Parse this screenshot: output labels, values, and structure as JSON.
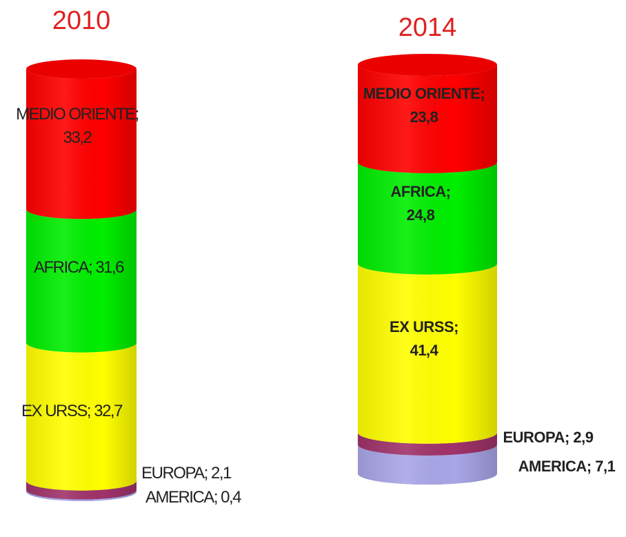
{
  "chart_data": [
    {
      "type": "stacked-cylinder",
      "title": "2010",
      "unit": "",
      "segments_bottom_to_top": [
        {
          "name": "AMERICA",
          "value": 0.4,
          "label": "AMERICA; 0,4",
          "color": "#a9a6e8"
        },
        {
          "name": "EUROPA",
          "value": 2.1,
          "label": "EUROPA; 2,1",
          "color": "#a0336a"
        },
        {
          "name": "EX URSS",
          "value": 32.7,
          "label": "EX URSS; 32,7",
          "color": "#ffff00"
        },
        {
          "name": "AFRICA",
          "value": 31.6,
          "label": "AFRICA; 31,6",
          "color": "#00ee00"
        },
        {
          "name": "MEDIO ORIENTE",
          "value": 33.2,
          "label": "MEDIO ORIENTE; 33,2",
          "color": "#ff0000"
        }
      ]
    },
    {
      "type": "stacked-cylinder",
      "title": "2014",
      "unit": "",
      "segments_bottom_to_top": [
        {
          "name": "AMERICA",
          "value": 7.1,
          "label": "AMERICA; 7,1",
          "color": "#a9a6e8"
        },
        {
          "name": "EUROPA",
          "value": 2.9,
          "label": "EUROPA; 2,9",
          "color": "#a0336a"
        },
        {
          "name": "EX URSS",
          "value": 41.4,
          "label": "EX URSS; 41,4",
          "color": "#ffff00"
        },
        {
          "name": "AFRICA",
          "value": 24.8,
          "label": "AFRICA; 24,8",
          "color": "#00ee00"
        },
        {
          "name": "MEDIO ORIENTE",
          "value": 23.8,
          "label": "MEDIO ORIENTE; 23,8",
          "color": "#ff0000"
        }
      ]
    }
  ],
  "colors": {
    "title": "#e02020",
    "label": "#222222",
    "outline": "#555555"
  }
}
